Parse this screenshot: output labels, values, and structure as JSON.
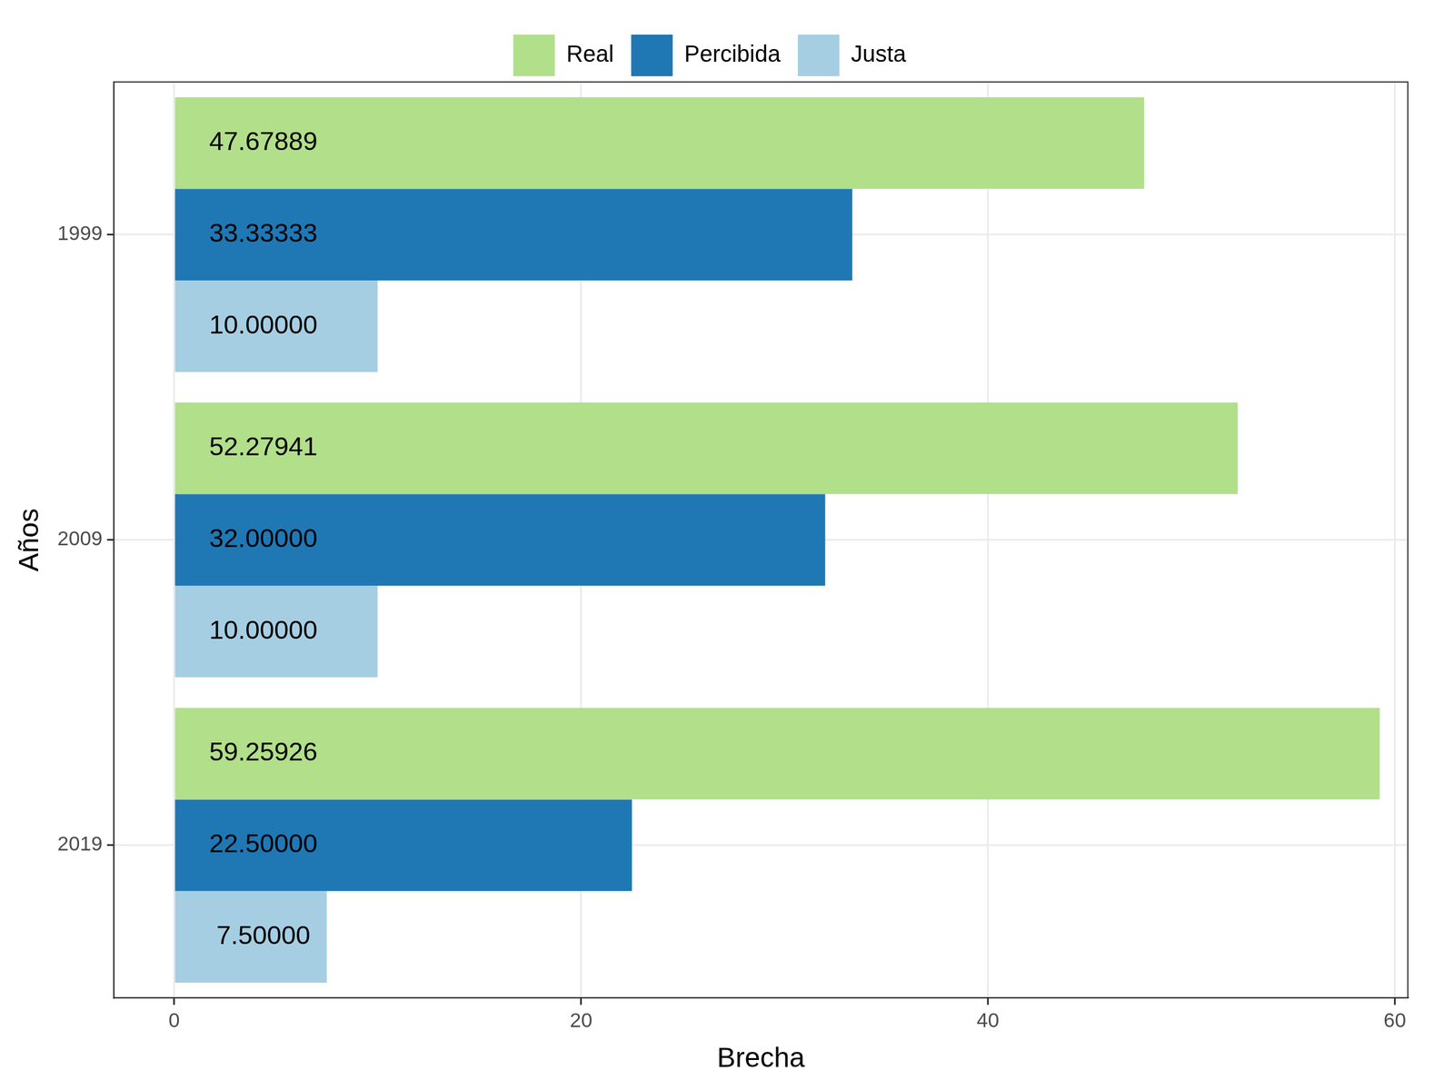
{
  "chart_data": {
    "type": "bar",
    "orientation": "horizontal",
    "xlabel": "Brecha",
    "ylabel": "Años",
    "categories": [
      "1999",
      "2009",
      "2019"
    ],
    "series": [
      {
        "name": "Real",
        "color": "#b2df8a",
        "values": [
          47.67889,
          52.27941,
          59.25926
        ],
        "value_labels": [
          "47.67889",
          "52.27941",
          "59.25926"
        ]
      },
      {
        "name": "Percibida",
        "color": "#1f78b4",
        "values": [
          33.33333,
          32.0,
          22.5
        ],
        "value_labels": [
          "33.33333",
          "32.00000",
          "22.50000"
        ]
      },
      {
        "name": "Justa",
        "color": "#a6cee3",
        "values": [
          10.0,
          10.0,
          7.5
        ],
        "value_labels": [
          "10.00000",
          "10.00000",
          "7.50000"
        ]
      }
    ],
    "xlim": [
      -2.96,
      60.64
    ],
    "xticks": [
      0,
      20,
      40,
      60
    ],
    "grid": true,
    "legend": "top",
    "data_labels": true
  }
}
